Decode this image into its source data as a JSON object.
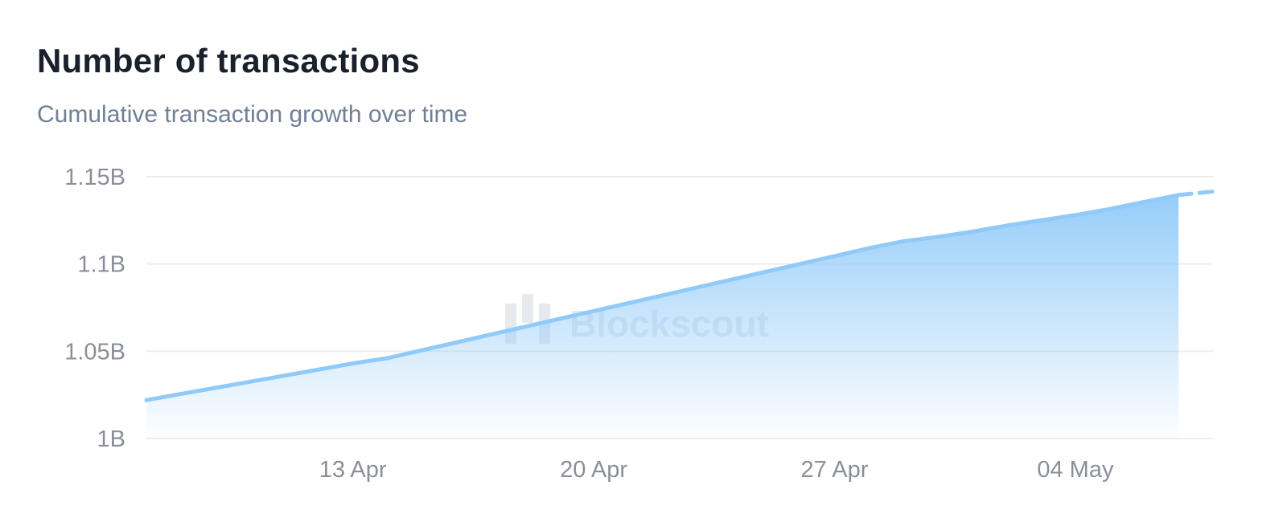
{
  "header": {
    "title": "Number of transactions",
    "subtitle": "Cumulative transaction growth over time"
  },
  "watermark": {
    "text": "Blockscout",
    "icon": "blockscout-logo-icon"
  },
  "colors": {
    "line": "#90caf9",
    "area_top": "#90caf9",
    "grid": "#ededed",
    "tick_text": "#8a8f98",
    "title": "#1a202c",
    "subtitle": "#718096"
  },
  "chart_data": {
    "type": "area",
    "title": "Number of transactions",
    "subtitle": "Cumulative transaction growth over time",
    "xlabel": "",
    "ylabel": "",
    "x_ticks": [
      "13 Apr",
      "20 Apr",
      "27 Apr",
      "04 May"
    ],
    "y_ticks": [
      "1B",
      "1.05B",
      "1.1B",
      "1.15B"
    ],
    "y_tick_values": [
      1000000000,
      1050000000,
      1100000000,
      1150000000
    ],
    "ylim": [
      1000000000,
      1150000000
    ],
    "xlim": [
      "2024-04-07",
      "2024-05-08"
    ],
    "grid": true,
    "legend": "none",
    "series": [
      {
        "x": [
          "2024-04-07",
          "2024-04-08",
          "2024-04-09",
          "2024-04-10",
          "2024-04-11",
          "2024-04-12",
          "2024-04-13",
          "2024-04-14",
          "2024-04-15",
          "2024-04-16",
          "2024-04-17",
          "2024-04-18",
          "2024-04-19",
          "2024-04-20",
          "2024-04-21",
          "2024-04-22",
          "2024-04-23",
          "2024-04-24",
          "2024-04-25",
          "2024-04-26",
          "2024-04-27",
          "2024-04-28",
          "2024-04-29",
          "2024-04-30",
          "2024-05-01",
          "2024-05-02",
          "2024-05-03",
          "2024-05-04",
          "2024-05-05",
          "2024-05-06",
          "2024-05-07"
        ],
        "values": [
          1022000000,
          1025500000,
          1029000000,
          1032500000,
          1036000000,
          1039500000,
          1043000000,
          1046000000,
          1050500000,
          1055000000,
          1059500000,
          1064000000,
          1068500000,
          1073000000,
          1077500000,
          1082000000,
          1086500000,
          1091000000,
          1095500000,
          1100000000,
          1104500000,
          1109000000,
          1113000000,
          1115500000,
          1118500000,
          1122000000,
          1125000000,
          1128000000,
          1131500000,
          1135500000,
          1139500000
        ]
      }
    ],
    "incomplete_segment": {
      "x": [
        "2024-05-07",
        "2024-05-08"
      ],
      "values": [
        1139500000,
        1141500000
      ]
    }
  }
}
